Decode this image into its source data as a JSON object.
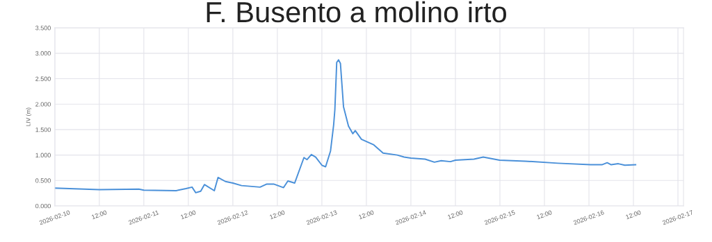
{
  "chart_data": {
    "type": "line",
    "title": "F. Busento a molino irto",
    "ylabel": "LIV (m)",
    "x": [
      "2026-02-10T00:00",
      "2026-02-10T12:00",
      "2026-02-10T22:40",
      "2026-02-11T00:00",
      "2026-02-11T08:40",
      "2026-02-11T11:20",
      "2026-02-11T13:00",
      "2026-02-11T14:00",
      "2026-02-11T15:20",
      "2026-02-11T16:20",
      "2026-02-11T19:00",
      "2026-02-11T20:00",
      "2026-02-11T22:00",
      "2026-02-12T00:00",
      "2026-02-12T02:20",
      "2026-02-12T07:20",
      "2026-02-12T09:10",
      "2026-02-12T11:00",
      "2026-02-12T13:40",
      "2026-02-12T14:50",
      "2026-02-12T16:40",
      "2026-02-12T19:10",
      "2026-02-12T20:00",
      "2026-02-12T21:10",
      "2026-02-12T22:20",
      "2026-02-13T00:00",
      "2026-02-13T01:00",
      "2026-02-13T02:20",
      "2026-02-13T03:10",
      "2026-02-13T03:30",
      "2026-02-13T04:00",
      "2026-02-13T04:30",
      "2026-02-13T05:00",
      "2026-02-13T05:50",
      "2026-02-13T07:10",
      "2026-02-13T08:20",
      "2026-02-13T09:00",
      "2026-02-13T10:40",
      "2026-02-13T14:00",
      "2026-02-13T16:30",
      "2026-02-13T20:20",
      "2026-02-13T22:10",
      "2026-02-14T00:00",
      "2026-02-14T03:50",
      "2026-02-14T06:20",
      "2026-02-14T08:10",
      "2026-02-14T10:40",
      "2026-02-14T12:00",
      "2026-02-14T17:00",
      "2026-02-14T19:30",
      "2026-02-14T23:55",
      "2026-02-15T06:50",
      "2026-02-15T15:35",
      "2026-02-16T00:25",
      "2026-02-16T03:30",
      "2026-02-16T04:55",
      "2026-02-16T06:00",
      "2026-02-16T07:55",
      "2026-02-16T09:40",
      "2026-02-16T12:35"
    ],
    "series": [
      {
        "color": "#4a90d9",
        "values": [
          0.35,
          0.32,
          0.33,
          0.31,
          0.3,
          0.34,
          0.37,
          0.26,
          0.29,
          0.42,
          0.3,
          0.56,
          0.48,
          0.45,
          0.4,
          0.37,
          0.43,
          0.43,
          0.36,
          0.49,
          0.45,
          0.95,
          0.91,
          1.01,
          0.96,
          0.8,
          0.77,
          1.08,
          1.59,
          1.89,
          2.82,
          2.87,
          2.8,
          1.95,
          1.57,
          1.42,
          1.48,
          1.31,
          1.2,
          1.04,
          1.0,
          0.96,
          0.94,
          0.92,
          0.86,
          0.89,
          0.87,
          0.9,
          0.92,
          0.96,
          0.9,
          0.88,
          0.84,
          0.81,
          0.81,
          0.85,
          0.81,
          0.83,
          0.8,
          0.81
        ]
      }
    ],
    "xlim": [
      "2026-02-10T00:00",
      "2026-02-17T01:30"
    ],
    "xticks": [
      "2026-02-10",
      {
        "value": "2026-02-10T12:00",
        "label": "12:00"
      },
      "2026-02-11",
      {
        "value": "2026-02-11T12:00",
        "label": "12:00"
      },
      "2026-02-12",
      {
        "value": "2026-02-12T12:00",
        "label": "12:00"
      },
      "2026-02-13",
      {
        "value": "2026-02-13T12:00",
        "label": "12:00"
      },
      "2026-02-14",
      {
        "value": "2026-02-14T12:00",
        "label": "12:00"
      },
      "2026-02-15",
      {
        "value": "2026-02-15T12:00",
        "label": "12:00"
      },
      "2026-02-16",
      {
        "value": "2026-02-16T12:00",
        "label": "12:00"
      },
      "2026-02-17"
    ],
    "ylim": [
      0,
      3.5
    ],
    "yticks": [
      {
        "value": 0,
        "label": "0.000"
      },
      {
        "value": 0.5,
        "label": "0.500"
      },
      {
        "value": 1,
        "label": "1.000"
      },
      {
        "value": 1.5,
        "label": "1.500"
      },
      {
        "value": 2,
        "label": "2.000"
      },
      {
        "value": 2.5,
        "label": "2.500"
      },
      {
        "value": 3,
        "label": "3.000"
      },
      {
        "value": 3.5,
        "label": "3.500"
      }
    ],
    "grid": true,
    "marker": "none",
    "line_style": "solid"
  }
}
